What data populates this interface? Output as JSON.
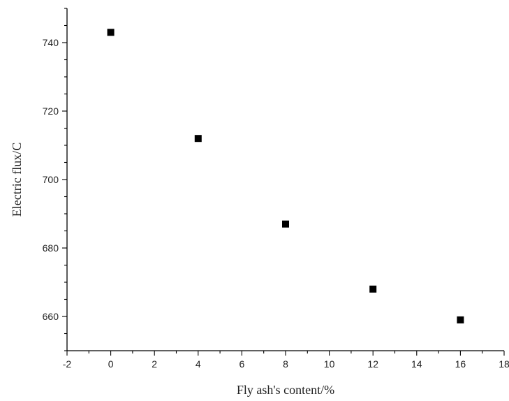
{
  "chart_data": {
    "type": "scatter",
    "title": "",
    "xlabel": "Fly ash's content/%",
    "ylabel": "Electric flux/C",
    "xlim": [
      -2,
      18
    ],
    "ylim": [
      650,
      750
    ],
    "x_ticks": [
      -2,
      0,
      2,
      4,
      6,
      8,
      10,
      12,
      14,
      16,
      18
    ],
    "x_tick_labels": [
      "-2",
      "0",
      "2",
      "4",
      "6",
      "8",
      "10",
      "12",
      "14",
      "16",
      "18"
    ],
    "y_ticks": [
      660,
      680,
      700,
      720,
      740
    ],
    "y_tick_labels": [
      "660",
      "680",
      "700",
      "720",
      "740"
    ],
    "grid": false,
    "legend": "none",
    "marker": "square",
    "marker_color": "#000000",
    "series": [
      {
        "points": [
          {
            "x": 0,
            "y": 743
          },
          {
            "x": 4,
            "y": 712
          },
          {
            "x": 8,
            "y": 687
          },
          {
            "x": 12,
            "y": 668
          },
          {
            "x": 16,
            "y": 659
          }
        ]
      }
    ]
  }
}
